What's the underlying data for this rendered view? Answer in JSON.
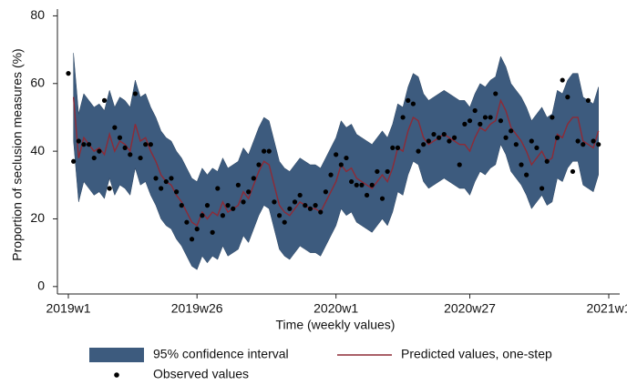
{
  "chart_data": {
    "type": "line",
    "ylabel": "Proportion of seclusion measures (%)",
    "xlabel": "Time (weekly values)",
    "categories": [
      "2019w1",
      null,
      null,
      null,
      null,
      null,
      null,
      null,
      null,
      null,
      null,
      null,
      null,
      null,
      null,
      null,
      null,
      null,
      null,
      null,
      null,
      null,
      null,
      null,
      null,
      "2019w26",
      null,
      null,
      null,
      null,
      null,
      null,
      null,
      null,
      null,
      null,
      null,
      null,
      null,
      null,
      null,
      null,
      null,
      null,
      null,
      null,
      null,
      null,
      null,
      null,
      null,
      null,
      "2020w1",
      null,
      null,
      null,
      null,
      null,
      null,
      null,
      null,
      null,
      null,
      null,
      null,
      null,
      null,
      null,
      null,
      null,
      null,
      null,
      null,
      null,
      null,
      null,
      null,
      null,
      "2020w27",
      null,
      null,
      null,
      null,
      null,
      null,
      null,
      null,
      null,
      null,
      null,
      null,
      null,
      null,
      null,
      null,
      null,
      null,
      null,
      null,
      null,
      null,
      null,
      null,
      null,
      null,
      "2021w1"
    ],
    "ylim": [
      -2.2,
      82
    ],
    "yticks": [
      0,
      20,
      40,
      60,
      80
    ],
    "grid": false,
    "series": [
      {
        "name": "95% confidence interval",
        "kind": "band",
        "color": "#3d5b7e",
        "lower": [
          null,
          43,
          25,
          31,
          29,
          27,
          28,
          26,
          32,
          27,
          30,
          29,
          27,
          35,
          30,
          31,
          27,
          24,
          20,
          18,
          17,
          14,
          12,
          9,
          6,
          5,
          9,
          7,
          9,
          8,
          12,
          9,
          10,
          11,
          15,
          13,
          17,
          21,
          24,
          23,
          17,
          11,
          9,
          8,
          10,
          12,
          11,
          10,
          10,
          9,
          12,
          15,
          18,
          23,
          21,
          22,
          19,
          18,
          17,
          16,
          18,
          20,
          18,
          22,
          28,
          27,
          33,
          37,
          36,
          31,
          29,
          30,
          31,
          32,
          31,
          30,
          29,
          29,
          27,
          31,
          34,
          33,
          35,
          36,
          42,
          39,
          34,
          32,
          30,
          27,
          23,
          25,
          27,
          24,
          25,
          32,
          31,
          35,
          37,
          37,
          30,
          29,
          28,
          33,
          null,
          null
        ],
        "upper": [
          null,
          69,
          51,
          57,
          55,
          53,
          54,
          52,
          58,
          53,
          56,
          55,
          53,
          61,
          56,
          57,
          53,
          50,
          46,
          44,
          43,
          40,
          38,
          35,
          32,
          31,
          35,
          33,
          35,
          34,
          38,
          35,
          36,
          37,
          41,
          39,
          43,
          47,
          50,
          49,
          43,
          37,
          35,
          34,
          36,
          38,
          37,
          36,
          36,
          35,
          38,
          41,
          44,
          49,
          47,
          48,
          45,
          44,
          43,
          42,
          44,
          46,
          44,
          48,
          54,
          53,
          59,
          63,
          62,
          57,
          55,
          56,
          57,
          58,
          57,
          56,
          55,
          55,
          53,
          57,
          60,
          59,
          61,
          62,
          68,
          65,
          60,
          58,
          56,
          53,
          49,
          51,
          53,
          50,
          51,
          58,
          57,
          61,
          63,
          63,
          56,
          55,
          54,
          59,
          null,
          null
        ]
      },
      {
        "name": "Predicted values, one-step",
        "kind": "line",
        "color": "#8e2a36",
        "values": [
          null,
          56,
          38,
          44,
          42,
          40,
          41,
          39,
          45,
          40,
          43,
          42,
          40,
          48,
          43,
          44,
          40,
          37,
          33,
          31,
          30,
          27,
          25,
          22,
          19,
          18,
          22,
          20,
          22,
          21,
          25,
          22,
          23,
          24,
          28,
          26,
          30,
          34,
          37,
          36,
          30,
          24,
          22,
          21,
          23,
          25,
          24,
          23,
          23,
          22,
          25,
          28,
          31,
          36,
          34,
          35,
          32,
          31,
          30,
          29,
          31,
          33,
          31,
          35,
          41,
          40,
          46,
          50,
          49,
          44,
          42,
          43,
          44,
          45,
          44,
          43,
          42,
          42,
          40,
          44,
          47,
          46,
          48,
          49,
          55,
          52,
          47,
          45,
          43,
          40,
          36,
          38,
          40,
          37,
          38,
          45,
          44,
          48,
          50,
          50,
          43,
          42,
          41,
          46,
          null,
          null
        ]
      },
      {
        "name": "Observed values",
        "kind": "points",
        "color": "#000000",
        "values": [
          63,
          37,
          43,
          42,
          42,
          38,
          40,
          55,
          29,
          47,
          44,
          41,
          39,
          57,
          38,
          42,
          42,
          32,
          29,
          31,
          32,
          28,
          24,
          19,
          14,
          17,
          21,
          24,
          16,
          29,
          21,
          24,
          23,
          30,
          25,
          28,
          32,
          36,
          40,
          40,
          25,
          21,
          19,
          23,
          25,
          27,
          24,
          23,
          24,
          22,
          28,
          33,
          39,
          36,
          38,
          31,
          30,
          30,
          27,
          30,
          34,
          26,
          34,
          41,
          41,
          50,
          55,
          54,
          40,
          42,
          43,
          45,
          44,
          45,
          43,
          44,
          36,
          48,
          49,
          52,
          48,
          50,
          50,
          57,
          49,
          44,
          46,
          42,
          36,
          33,
          43,
          41,
          29,
          37,
          50,
          44,
          61,
          56,
          34,
          43,
          42,
          55,
          43,
          42,
          null,
          null
        ]
      }
    ]
  }
}
